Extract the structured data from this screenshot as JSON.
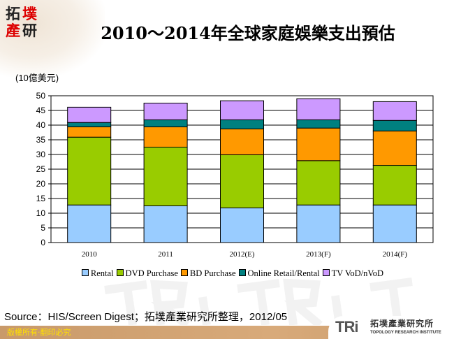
{
  "logo": {
    "chars": [
      "拓",
      "墣",
      "產",
      "研"
    ]
  },
  "chart_data": {
    "type": "bar",
    "stacked": true,
    "title": "2010～2014年全球家庭娛樂支出預估",
    "ylabel": "(10億美元)",
    "xlabel": "",
    "categories": [
      "2010",
      "2011",
      "2012(E)",
      "2013(F)",
      "2014(F)"
    ],
    "ylim": [
      0,
      50
    ],
    "yticks": [
      0,
      5,
      10,
      15,
      20,
      25,
      30,
      35,
      40,
      45,
      50
    ],
    "grid": true,
    "legend_position": "bottom",
    "series": [
      {
        "name": "Rental",
        "color": "#99ccff",
        "values": [
          12.8,
          12.5,
          11.8,
          12.8,
          12.8
        ]
      },
      {
        "name": "DVD Purchase",
        "color": "#99cc00",
        "values": [
          23.1,
          20.0,
          18.1,
          15.1,
          13.5
        ]
      },
      {
        "name": "BD Purchase",
        "color": "#ff9900",
        "values": [
          3.5,
          6.9,
          8.8,
          11.1,
          11.7
        ]
      },
      {
        "name": "Online Retail/Rental",
        "color": "#008080",
        "values": [
          1.5,
          2.4,
          3.1,
          2.8,
          3.6
        ]
      },
      {
        "name": "TV VoD/nVoD",
        "color": "#cc99ff",
        "values": [
          5.2,
          5.7,
          6.5,
          7.2,
          6.4
        ]
      }
    ]
  },
  "source": "Source：HIS/Screen Digest；拓墣產業研究所整理，2012/05",
  "footer": "版權所有‧翻印必究",
  "brand": {
    "mark": "TRi",
    "name_cn": "拓墣產業研究所",
    "name_en": "TOPOLOGY RESEARCH INSTITUTE"
  }
}
